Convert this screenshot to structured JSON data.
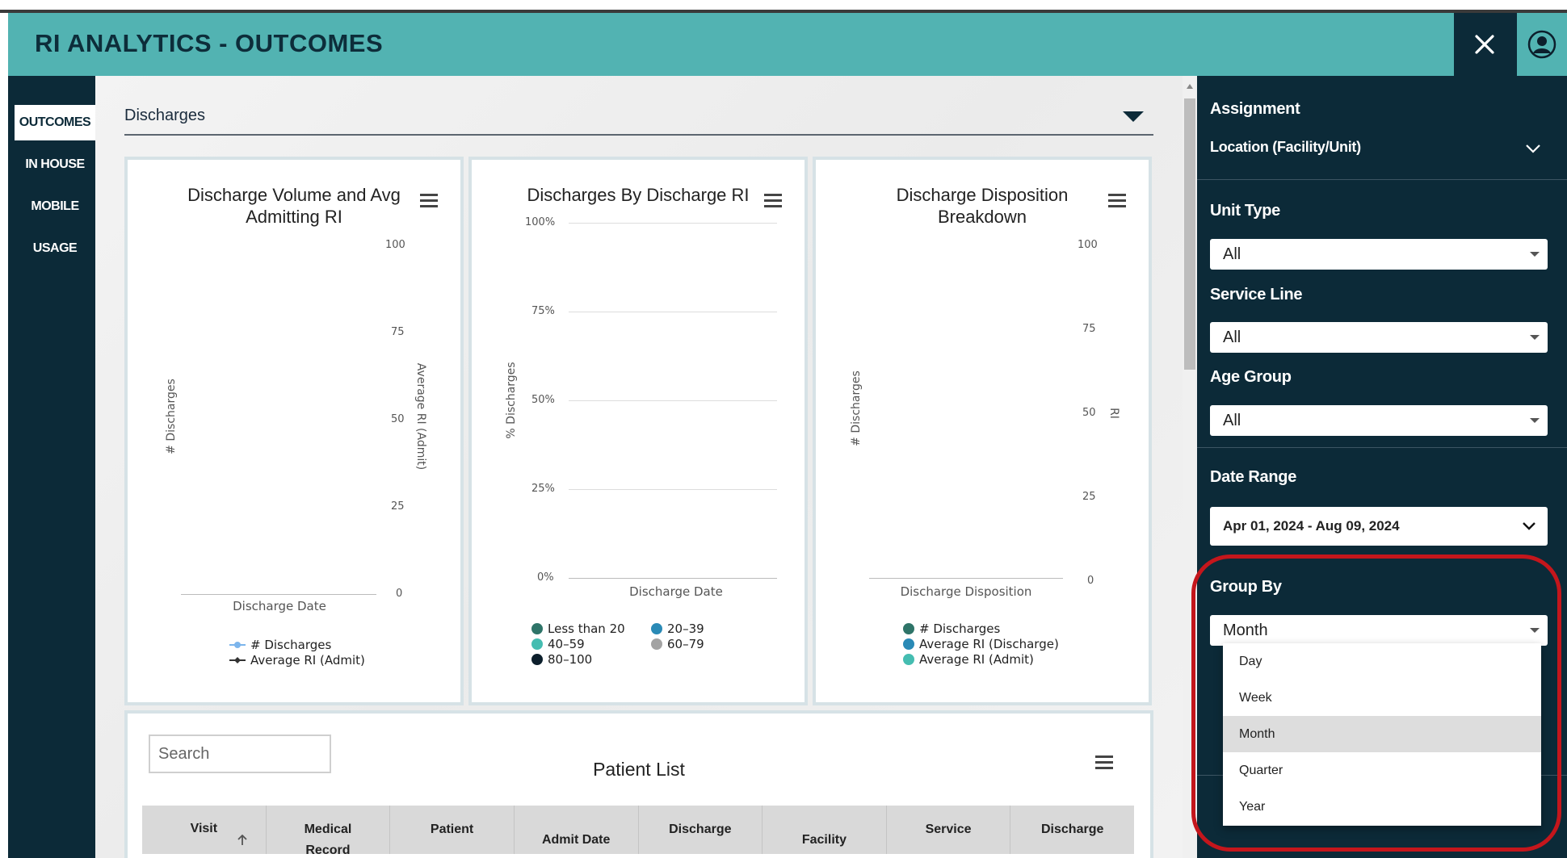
{
  "app": {
    "title": "RI ANALYTICS - OUTCOMES"
  },
  "header": {
    "close_icon": "close-icon",
    "user_icon": "user-account-icon"
  },
  "nav": {
    "items": [
      {
        "label": "OUTCOMES",
        "active": true
      },
      {
        "label": "IN HOUSE",
        "active": false
      },
      {
        "label": "MOBILE",
        "active": false
      },
      {
        "label": "USAGE",
        "active": false
      }
    ]
  },
  "section": {
    "title": "Discharges"
  },
  "charts": {
    "volume": {
      "title_line1": "Discharge Volume and Avg",
      "title_line2": "Admitting RI",
      "y_left_label": "# Discharges",
      "y_right_label": "Average RI (Admit)",
      "x_label": "Discharge Date",
      "right_ticks": [
        "100",
        "75",
        "50",
        "25",
        "0"
      ],
      "legend": [
        "# Discharges",
        "Average RI (Admit)"
      ]
    },
    "by_ri": {
      "title": "Discharges By Discharge RI",
      "y_label": "% Discharges",
      "x_label": "Discharge Date",
      "ticks": [
        "100%",
        "75%",
        "50%",
        "25%",
        "0%"
      ],
      "legend": [
        "Less than 20",
        "20–39",
        "40–59",
        "60–79",
        "80–100"
      ]
    },
    "disposition": {
      "title_line1": "Discharge Disposition",
      "title_line2": "Breakdown",
      "y_left_label": "# Discharges",
      "y_right_label": "RI",
      "x_label": "Discharge Disposition",
      "right_ticks": [
        "100",
        "75",
        "50",
        "25",
        "0"
      ],
      "legend": [
        "# Discharges",
        "Average RI (Discharge)",
        "Average RI (Admit)"
      ]
    }
  },
  "chart_data": [
    {
      "type": "line",
      "title": "Discharge Volume and Avg Admitting RI",
      "xlabel": "Discharge Date",
      "ylabel": "# Discharges",
      "y2label": "Average RI (Admit)",
      "y2lim": [
        0,
        100
      ],
      "series": [
        {
          "name": "# Discharges",
          "values": []
        },
        {
          "name": "Average RI (Admit)",
          "values": []
        }
      ]
    },
    {
      "type": "bar",
      "title": "Discharges By Discharge RI",
      "xlabel": "Discharge Date",
      "ylabel": "% Discharges",
      "ylim": [
        0,
        100
      ],
      "series": [
        {
          "name": "Less than 20",
          "values": []
        },
        {
          "name": "20–39",
          "values": []
        },
        {
          "name": "40–59",
          "values": []
        },
        {
          "name": "60–79",
          "values": []
        },
        {
          "name": "80–100",
          "values": []
        }
      ]
    },
    {
      "type": "bar",
      "title": "Discharge Disposition Breakdown",
      "xlabel": "Discharge Disposition",
      "ylabel": "# Discharges",
      "y2label": "RI",
      "y2lim": [
        0,
        100
      ],
      "series": [
        {
          "name": "# Discharges",
          "values": []
        },
        {
          "name": "Average RI (Discharge)",
          "values": []
        },
        {
          "name": "Average RI (Admit)",
          "values": []
        }
      ]
    }
  ],
  "patient_list": {
    "title": "Patient List",
    "search_placeholder": "Search",
    "columns": [
      {
        "line1": "Visit",
        "line2": ""
      },
      {
        "line1": "Medical",
        "line2": "Record"
      },
      {
        "line1": "Patient",
        "line2": ""
      },
      {
        "line1": "",
        "line2": "Admit Date"
      },
      {
        "line1": "Discharge",
        "line2": ""
      },
      {
        "line1": "",
        "line2": "Facility"
      },
      {
        "line1": "Service",
        "line2": ""
      },
      {
        "line1": "Discharge",
        "line2": ""
      }
    ]
  },
  "filters": {
    "assignment_label": "Assignment",
    "location_label": "Location (Facility/Unit)",
    "unit_type_label": "Unit Type",
    "unit_type_value": "All",
    "service_line_label": "Service Line",
    "service_line_value": "All",
    "age_group_label": "Age Group",
    "age_group_value": "All",
    "date_range_label": "Date Range",
    "date_range_value": "Apr 01, 2024 - Aug 09, 2024",
    "group_by_label": "Group By",
    "group_by_value": "Month",
    "group_by_options": [
      "Day",
      "Week",
      "Month",
      "Quarter",
      "Year"
    ]
  },
  "colors": {
    "header": "#52b3b2",
    "navy": "#0c2a38",
    "highlight": "#c4161c",
    "less_than_20": "#2e7468",
    "r20_39": "#2a8ab6",
    "r40_59": "#45bdb1",
    "r60_79": "#a3a3a3",
    "r80_100": "#0c1f2c"
  }
}
